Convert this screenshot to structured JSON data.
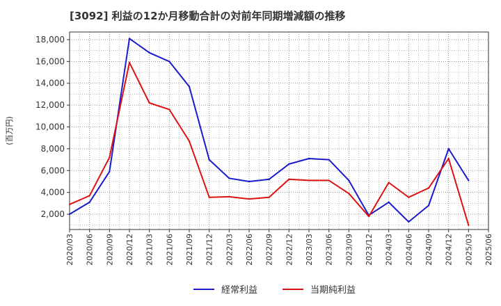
{
  "chart_data": {
    "type": "line",
    "title": "[3092]  利益の12か月移動合計の対前年同期増減額の推移",
    "ylabel": "(百万円)",
    "xlabel": "",
    "ylim": [
      600,
      18700
    ],
    "yticks": [
      2000,
      4000,
      6000,
      8000,
      10000,
      12000,
      14000,
      16000,
      18000
    ],
    "ytick_labels": [
      "2,000",
      "4,000",
      "6,000",
      "8,000",
      "10,000",
      "12,000",
      "14,000",
      "16,000",
      "18,000"
    ],
    "categories": [
      "2020/03",
      "2020/06",
      "2020/09",
      "2020/12",
      "2021/03",
      "2021/06",
      "2021/09",
      "2021/12",
      "2022/03",
      "2022/06",
      "2022/09",
      "2022/12",
      "2023/03",
      "2023/06",
      "2023/09",
      "2023/12",
      "2024/03",
      "2024/06",
      "2024/09",
      "2024/12",
      "2025/03",
      "2025/06"
    ],
    "grid": true,
    "legend": "bottom-center",
    "series": [
      {
        "name": "経常利益",
        "color": "#1a1acc",
        "values": [
          2000,
          3100,
          5900,
          18100,
          16800,
          16000,
          13700,
          7000,
          5300,
          5000,
          5200,
          6600,
          7100,
          7000,
          5100,
          1900,
          3100,
          1300,
          2800,
          8000,
          5100,
          null
        ]
      },
      {
        "name": "当期純利益",
        "color": "#dd1111",
        "values": [
          2900,
          3700,
          7200,
          15900,
          12200,
          11600,
          8700,
          3550,
          3600,
          3400,
          3550,
          5200,
          5100,
          5100,
          3900,
          1800,
          4900,
          3550,
          4400,
          7100,
          1000,
          null
        ]
      }
    ]
  }
}
